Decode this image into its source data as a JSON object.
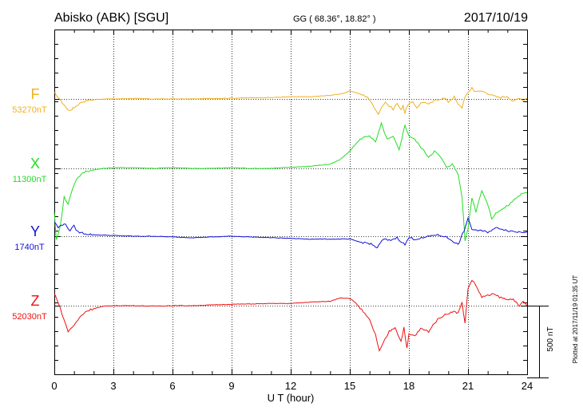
{
  "header": {
    "station": "Abisko (ABK)  [SGU]",
    "coords": "GG ( 68.36°,  18.82° )",
    "date": "2017/10/19"
  },
  "footer": {
    "plotted": "Plotted at 2017/11/19 01:35 UT"
  },
  "scale": {
    "label": "500 nT",
    "value_nT": 500
  },
  "colors": {
    "F": "#f0b020",
    "X": "#22dd22",
    "Y": "#1010dd",
    "Z": "#ee1111"
  },
  "chart_data": {
    "type": "line",
    "title": "Abisko (ABK)  [SGU]",
    "xlabel": "U T (hour)",
    "xlim": [
      0,
      24
    ],
    "xticks": [
      "0",
      "3",
      "6",
      "9",
      "12",
      "15",
      "18",
      "21",
      "24"
    ],
    "grid": true,
    "series": [
      {
        "name": "F",
        "baseline_label": "53270nT",
        "x": [
          0,
          0.1,
          0.3,
          0.5,
          0.7,
          0.9,
          1.0,
          1.1,
          1.2,
          1.4,
          1.7,
          2.0,
          2.5,
          3.0,
          4.0,
          5.0,
          6.0,
          7.0,
          8.0,
          9.0,
          10.0,
          11.0,
          12.0,
          13.0,
          14.0,
          14.5,
          14.8,
          15.0,
          15.3,
          15.6,
          15.9,
          16.1,
          16.3,
          16.45,
          16.6,
          16.8,
          17.0,
          17.2,
          17.4,
          17.6,
          17.7,
          17.8,
          17.9,
          18.0,
          18.2,
          18.4,
          18.6,
          18.8,
          19.0,
          19.2,
          19.5,
          19.8,
          20.0,
          20.3,
          20.5,
          20.7,
          20.85,
          21.0,
          21.1,
          21.2,
          21.3,
          21.5,
          21.7,
          22.0,
          22.3,
          22.6,
          23.0,
          23.3,
          23.6,
          23.8,
          24.0
        ],
        "values": [
          40,
          30,
          -10,
          -40,
          -80,
          -70,
          -60,
          -50,
          -40,
          -20,
          -10,
          -5,
          0,
          0,
          3,
          0,
          0,
          0,
          3,
          5,
          8,
          10,
          15,
          15,
          25,
          35,
          45,
          55,
          45,
          30,
          10,
          -20,
          -80,
          -100,
          -60,
          -20,
          -50,
          -70,
          -30,
          -80,
          -40,
          -100,
          -50,
          -40,
          -20,
          -60,
          -30,
          -20,
          -40,
          -20,
          0,
          5,
          -20,
          15,
          -40,
          -60,
          20,
          40,
          60,
          80,
          60,
          50,
          55,
          40,
          20,
          10,
          20,
          -20,
          10,
          -10,
          5
        ]
      },
      {
        "name": "X",
        "baseline_label": "11300nT",
        "x": [
          0,
          0.1,
          0.3,
          0.5,
          0.7,
          0.9,
          1.1,
          1.3,
          1.6,
          2.0,
          2.5,
          3.0,
          4.0,
          5.0,
          6.0,
          7.0,
          8.0,
          9.0,
          10.0,
          11.0,
          12.0,
          13.0,
          14.0,
          14.5,
          15.0,
          15.3,
          15.6,
          16.0,
          16.3,
          16.6,
          16.9,
          17.2,
          17.5,
          17.8,
          18.0,
          18.3,
          18.6,
          19.0,
          19.3,
          19.6,
          19.9,
          20.2,
          20.5,
          20.7,
          20.85,
          21.0,
          21.2,
          21.4,
          21.7,
          22.0,
          22.2,
          22.5,
          22.8,
          23.1,
          23.4,
          23.7,
          24.0
        ],
        "values": [
          -300,
          -500,
          -400,
          -200,
          -250,
          -150,
          -80,
          -50,
          -20,
          -10,
          0,
          5,
          5,
          0,
          5,
          0,
          0,
          5,
          0,
          0,
          8,
          15,
          30,
          60,
          120,
          170,
          210,
          230,
          180,
          310,
          200,
          220,
          130,
          300,
          230,
          200,
          150,
          80,
          120,
          80,
          10,
          30,
          -40,
          -200,
          -500,
          -420,
          -200,
          -300,
          -150,
          -250,
          -350,
          -300,
          -280,
          -250,
          -210,
          -180,
          -170
        ]
      },
      {
        "name": "Y",
        "baseline_label": "1740nT",
        "x": [
          0,
          0.2,
          0.5,
          0.8,
          1.0,
          1.2,
          1.5,
          2.0,
          3.0,
          4.0,
          5.0,
          6.0,
          7.0,
          8.0,
          9.0,
          10.0,
          11.0,
          12.0,
          13.0,
          14.0,
          15.0,
          15.5,
          16.0,
          16.4,
          16.7,
          17.0,
          17.4,
          17.8,
          18.0,
          18.3,
          18.8,
          19.3,
          19.8,
          20.2,
          20.5,
          20.8,
          21.0,
          21.2,
          21.5,
          22.0,
          22.5,
          23.0,
          23.5,
          24.0
        ],
        "values": [
          100,
          60,
          90,
          40,
          70,
          30,
          20,
          10,
          5,
          0,
          0,
          -5,
          -10,
          -5,
          0,
          -5,
          -10,
          -15,
          -20,
          -20,
          -20,
          -40,
          -50,
          -80,
          -20,
          -30,
          -10,
          -60,
          -10,
          -20,
          -10,
          10,
          0,
          -30,
          -60,
          40,
          120,
          50,
          40,
          30,
          60,
          40,
          30,
          30
        ]
      },
      {
        "name": "Z",
        "baseline_label": "52030nT",
        "x": [
          0,
          0.1,
          0.3,
          0.5,
          0.7,
          0.9,
          1.1,
          1.3,
          1.6,
          2.0,
          2.5,
          3.0,
          4.0,
          5.0,
          6.0,
          7.0,
          8.0,
          9.0,
          10.0,
          11.0,
          12.0,
          13.0,
          14.0,
          14.5,
          15.0,
          15.3,
          15.6,
          16.0,
          16.3,
          16.5,
          16.7,
          17.0,
          17.3,
          17.6,
          17.75,
          17.9,
          18.0,
          18.3,
          18.6,
          19.0,
          19.3,
          19.6,
          19.9,
          20.2,
          20.5,
          20.7,
          20.85,
          21.0,
          21.2,
          21.4,
          21.7,
          22.0,
          22.3,
          22.6,
          23.0,
          23.3,
          23.6,
          23.8,
          24.0
        ],
        "values": [
          80,
          60,
          -20,
          -100,
          -180,
          -150,
          -120,
          -80,
          -40,
          -20,
          -5,
          0,
          0,
          -3,
          0,
          0,
          5,
          10,
          12,
          15,
          15,
          25,
          30,
          55,
          50,
          20,
          -30,
          -100,
          -200,
          -320,
          -260,
          -180,
          -150,
          -250,
          -150,
          -300,
          -200,
          -210,
          -160,
          -180,
          -120,
          -80,
          -60,
          -40,
          -50,
          20,
          -120,
          120,
          180,
          140,
          60,
          70,
          80,
          60,
          40,
          50,
          -10,
          30,
          0
        ]
      }
    ]
  }
}
